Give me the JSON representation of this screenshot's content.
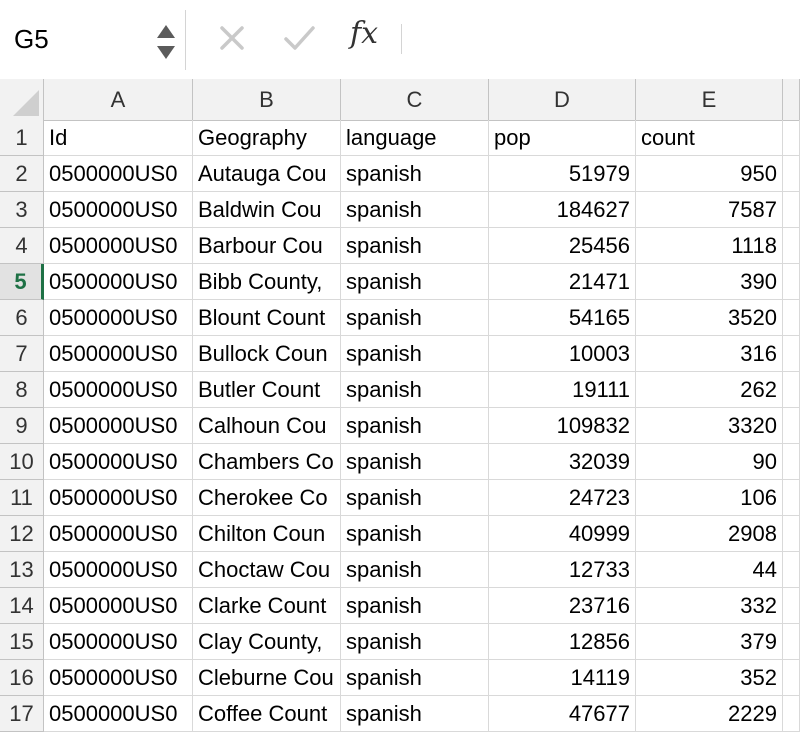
{
  "formula_bar": {
    "cell_ref": "G5",
    "formula_value": "",
    "fx_label": "fx",
    "icons": {
      "cancel": "cross-icon",
      "enter": "checkmark-icon",
      "function": "fx-icon",
      "spinner": "up-down-stepper-icon"
    }
  },
  "columns": [
    "A",
    "B",
    "C",
    "D",
    "E"
  ],
  "rows": [
    {
      "num": "1",
      "cells": [
        "Id",
        "Geography",
        "language",
        "pop",
        "count"
      ]
    },
    {
      "num": "2",
      "cells": [
        "0500000US0",
        "Autauga Cou",
        "spanish",
        "51979",
        "950"
      ]
    },
    {
      "num": "3",
      "cells": [
        "0500000US0",
        "Baldwin Cou",
        "spanish",
        "184627",
        "7587"
      ]
    },
    {
      "num": "4",
      "cells": [
        "0500000US0",
        "Barbour Cou",
        "spanish",
        "25456",
        "1118"
      ]
    },
    {
      "num": "5",
      "cells": [
        "0500000US0",
        "Bibb County,",
        "spanish",
        "21471",
        "390"
      ]
    },
    {
      "num": "6",
      "cells": [
        "0500000US0",
        "Blount Count",
        "spanish",
        "54165",
        "3520"
      ]
    },
    {
      "num": "7",
      "cells": [
        "0500000US0",
        "Bullock Coun",
        "spanish",
        "10003",
        "316"
      ]
    },
    {
      "num": "8",
      "cells": [
        "0500000US0",
        "Butler Count",
        "spanish",
        "19111",
        "262"
      ]
    },
    {
      "num": "9",
      "cells": [
        "0500000US0",
        "Calhoun Cou",
        "spanish",
        "109832",
        "3320"
      ]
    },
    {
      "num": "10",
      "cells": [
        "0500000US0",
        "Chambers Co",
        "spanish",
        "32039",
        "90"
      ]
    },
    {
      "num": "11",
      "cells": [
        "0500000US0",
        "Cherokee Co",
        "spanish",
        "24723",
        "106"
      ]
    },
    {
      "num": "12",
      "cells": [
        "0500000US0",
        "Chilton Coun",
        "spanish",
        "40999",
        "2908"
      ]
    },
    {
      "num": "13",
      "cells": [
        "0500000US0",
        "Choctaw Cou",
        "spanish",
        "12733",
        "44"
      ]
    },
    {
      "num": "14",
      "cells": [
        "0500000US0",
        "Clarke Count",
        "spanish",
        "23716",
        "332"
      ]
    },
    {
      "num": "15",
      "cells": [
        "0500000US0",
        "Clay County,",
        "spanish",
        "12856",
        "379"
      ]
    },
    {
      "num": "16",
      "cells": [
        "0500000US0",
        "Cleburne Cou",
        "spanish",
        "14119",
        "352"
      ]
    },
    {
      "num": "17",
      "cells": [
        "0500000US0",
        "Coffee Count",
        "spanish",
        "47677",
        "2229"
      ]
    }
  ],
  "active_row": "5",
  "colors": {
    "header_bg": "#f2f2f2",
    "active_green": "#1e7145",
    "gridline": "#d9d9d9"
  }
}
